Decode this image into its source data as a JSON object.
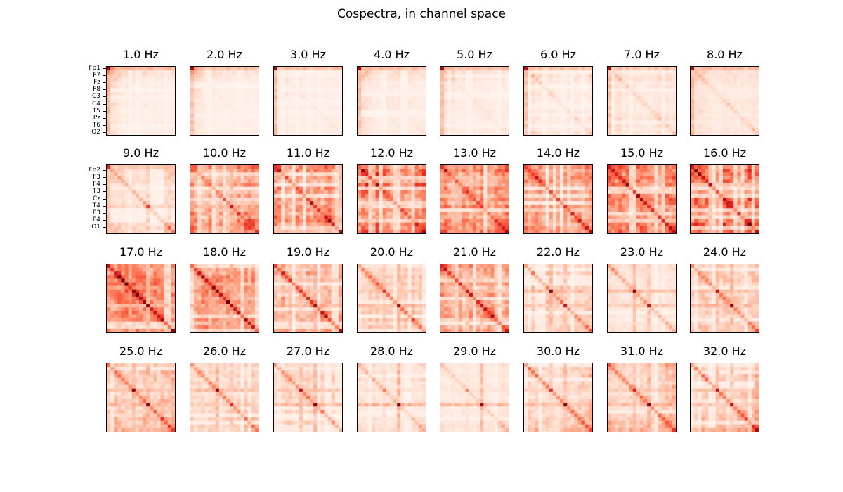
{
  "figure": {
    "title": "Cospectra, in channel space"
  },
  "chart_data": {
    "type": "heatmap",
    "title": "Cospectra, in channel space",
    "colormap": "Reds",
    "color_low": "#fff5f0",
    "color_high": "#67000d",
    "n_channels": 19,
    "panel_titles": [
      "1.0 Hz",
      "2.0 Hz",
      "3.0 Hz",
      "4.0 Hz",
      "5.0 Hz",
      "6.0 Hz",
      "7.0 Hz",
      "8.0 Hz",
      "9.0 Hz",
      "10.0 Hz",
      "11.0 Hz",
      "12.0 Hz",
      "13.0 Hz",
      "14.0 Hz",
      "15.0 Hz",
      "16.0 Hz",
      "17.0 Hz",
      "18.0 Hz",
      "19.0 Hz",
      "20.0 Hz",
      "21.0 Hz",
      "22.0 Hz",
      "23.0 Hz",
      "24.0 Hz",
      "25.0 Hz",
      "26.0 Hz",
      "27.0 Hz",
      "28.0 Hz",
      "29.0 Hz",
      "30.0 Hz",
      "31.0 Hz",
      "32.0 Hz"
    ],
    "yticks_row1": [
      "Fp1",
      "F7",
      "Fz",
      "F8",
      "C3",
      "C4",
      "T5",
      "Pz",
      "T6",
      "O2"
    ],
    "yticks_row2": [
      "Fp2",
      "F3",
      "F4",
      "T3",
      "Cz",
      "T4",
      "P3",
      "P4",
      "O1"
    ],
    "panels": [
      {
        "freq": 1,
        "base": 0.05,
        "frontal": 0.35,
        "peak": 0,
        "peak_value": 0.95,
        "diag": 0.02,
        "occipital": 0,
        "spots": []
      },
      {
        "freq": 2,
        "base": 0.05,
        "frontal": 0.32,
        "peak": 0,
        "peak_value": 0.9,
        "diag": 0.02,
        "occipital": 0,
        "spots": []
      },
      {
        "freq": 3,
        "base": 0.05,
        "frontal": 0.3,
        "peak": 0,
        "peak_value": 0.92,
        "diag": 0.03,
        "occipital": 0,
        "spots": []
      },
      {
        "freq": 4,
        "base": 0.06,
        "frontal": 0.3,
        "peak": 0,
        "peak_value": 0.92,
        "diag": 0.03,
        "occipital": 0,
        "spots": []
      },
      {
        "freq": 5,
        "base": 0.06,
        "frontal": 0.28,
        "peak": 0,
        "peak_value": 0.88,
        "diag": 0.04,
        "occipital": 0,
        "spots": []
      },
      {
        "freq": 6,
        "base": 0.1,
        "frontal": 0.25,
        "peak": 0,
        "peak_value": 0.85,
        "diag": 0.08,
        "occipital": 0,
        "spots": []
      },
      {
        "freq": 7,
        "base": 0.1,
        "frontal": 0.22,
        "peak": 0,
        "peak_value": 0.85,
        "diag": 0.1,
        "occipital": 0.05,
        "spots": []
      },
      {
        "freq": 8,
        "base": 0.08,
        "frontal": 0.2,
        "peak": 0,
        "peak_value": 0.9,
        "diag": 0.1,
        "occipital": 0.05,
        "spots": []
      },
      {
        "freq": 9,
        "base": 0.12,
        "frontal": 0.18,
        "peak": 0,
        "peak_value": 0.75,
        "diag": 0.18,
        "occipital": 0.15,
        "spots": [
          [
            11,
            11,
            0.65
          ],
          [
            17,
            17,
            0.55
          ]
        ]
      },
      {
        "freq": 10,
        "base": 0.3,
        "frontal": 0.15,
        "peak": 0,
        "peak_value": 0.55,
        "diag": 0.25,
        "occipital": 0.25,
        "spots": [
          [
            11,
            11,
            0.8
          ],
          [
            9,
            9,
            0.6
          ],
          [
            17,
            17,
            0.55
          ]
        ]
      },
      {
        "freq": 11,
        "base": 0.35,
        "frontal": 0.1,
        "peak": 0,
        "peak_value": 0.7,
        "diag": 0.3,
        "occipital": 0.3,
        "spots": [
          [
            10,
            10,
            0.9
          ],
          [
            18,
            18,
            0.9
          ],
          [
            15,
            15,
            0.6
          ]
        ]
      },
      {
        "freq": 12,
        "base": 0.45,
        "frontal": 0.05,
        "peak": 18,
        "peak_value": 0.9,
        "diag": 0.25,
        "occipital": 0.3,
        "spots": [
          [
            3,
            3,
            0.6
          ],
          [
            8,
            8,
            0.55
          ],
          [
            13,
            13,
            0.55
          ]
        ]
      },
      {
        "freq": 13,
        "base": 0.35,
        "frontal": 0.05,
        "peak": 18,
        "peak_value": 0.9,
        "diag": 0.25,
        "occipital": 0.25,
        "spots": [
          [
            10,
            10,
            0.6
          ],
          [
            17,
            17,
            0.65
          ]
        ]
      },
      {
        "freq": 14,
        "base": 0.3,
        "frontal": 0.05,
        "peak": 18,
        "peak_value": 0.9,
        "diag": 0.35,
        "occipital": 0.2,
        "spots": [
          [
            4,
            4,
            0.55
          ],
          [
            9,
            9,
            0.65
          ],
          [
            17,
            17,
            0.8
          ]
        ]
      },
      {
        "freq": 15,
        "base": 0.4,
        "frontal": 0.05,
        "peak": 18,
        "peak_value": 0.85,
        "diag": 0.35,
        "occipital": 0.2,
        "spots": [
          [
            4,
            4,
            0.8
          ],
          [
            7,
            7,
            0.65
          ],
          [
            10,
            10,
            0.75
          ],
          [
            15,
            15,
            0.7
          ]
        ]
      },
      {
        "freq": 16,
        "base": 0.45,
        "frontal": 0.05,
        "peak": 18,
        "peak_value": 0.85,
        "diag": 0.35,
        "occipital": 0.2,
        "spots": [
          [
            5,
            5,
            0.85
          ],
          [
            9,
            9,
            0.8
          ],
          [
            13,
            13,
            0.7
          ],
          [
            16,
            16,
            0.7
          ]
        ]
      },
      {
        "freq": 17,
        "base": 0.4,
        "frontal": 0.1,
        "peak": 11,
        "peak_value": 0.95,
        "diag": 0.45,
        "occipital": 0.15,
        "spots": [
          [
            3,
            3,
            0.75
          ],
          [
            7,
            7,
            0.7
          ],
          [
            15,
            15,
            0.75
          ],
          [
            18,
            18,
            0.85
          ]
        ]
      },
      {
        "freq": 18,
        "base": 0.35,
        "frontal": 0.08,
        "peak": 11,
        "peak_value": 0.9,
        "diag": 0.45,
        "occipital": 0.12,
        "spots": [
          [
            3,
            3,
            0.7
          ],
          [
            7,
            7,
            0.7
          ],
          [
            15,
            15,
            0.7
          ]
        ]
      },
      {
        "freq": 19,
        "base": 0.3,
        "frontal": 0.05,
        "peak": 11,
        "peak_value": 0.9,
        "diag": 0.4,
        "occipital": 0.1,
        "spots": [
          [
            4,
            4,
            0.7
          ],
          [
            7,
            7,
            0.7
          ]
        ]
      },
      {
        "freq": 20,
        "base": 0.2,
        "frontal": 0.05,
        "peak": 11,
        "peak_value": 0.9,
        "diag": 0.3,
        "occipital": 0.05,
        "spots": [
          [
            7,
            7,
            0.7
          ]
        ]
      },
      {
        "freq": 21,
        "base": 0.3,
        "frontal": 0.05,
        "peak": 11,
        "peak_value": 0.85,
        "diag": 0.4,
        "occipital": 0.05,
        "spots": [
          [
            7,
            7,
            0.8
          ],
          [
            4,
            4,
            0.6
          ]
        ]
      },
      {
        "freq": 22,
        "base": 0.18,
        "frontal": 0.05,
        "peak": 7,
        "peak_value": 0.95,
        "diag": 0.25,
        "occipital": 0.05,
        "spots": [
          [
            11,
            11,
            0.8
          ]
        ]
      },
      {
        "freq": 23,
        "base": 0.12,
        "frontal": 0.05,
        "peak": 7,
        "peak_value": 0.95,
        "diag": 0.2,
        "occipital": 0.05,
        "spots": [
          [
            11,
            11,
            0.8
          ]
        ]
      },
      {
        "freq": 24,
        "base": 0.18,
        "frontal": 0.05,
        "peak": 11,
        "peak_value": 0.95,
        "diag": 0.25,
        "occipital": 0.05,
        "spots": [
          [
            7,
            7,
            0.85
          ]
        ]
      },
      {
        "freq": 25,
        "base": 0.2,
        "frontal": 0.1,
        "peak": 11,
        "peak_value": 0.95,
        "diag": 0.3,
        "occipital": 0.15,
        "spots": [
          [
            7,
            7,
            0.95
          ]
        ]
      },
      {
        "freq": 26,
        "base": 0.15,
        "frontal": 0.05,
        "peak": 7,
        "peak_value": 0.95,
        "diag": 0.25,
        "occipital": 0.1,
        "spots": [
          [
            11,
            11,
            0.7
          ]
        ]
      },
      {
        "freq": 27,
        "base": 0.15,
        "frontal": 0.05,
        "peak": 11,
        "peak_value": 0.95,
        "diag": 0.25,
        "occipital": 0.1,
        "spots": [
          [
            7,
            7,
            0.85
          ]
        ]
      },
      {
        "freq": 28,
        "base": 0.1,
        "frontal": 0.03,
        "peak": 11,
        "peak_value": 0.95,
        "diag": 0.15,
        "occipital": 0.1,
        "spots": [
          [
            7,
            7,
            0.5
          ]
        ]
      },
      {
        "freq": 29,
        "base": 0.07,
        "frontal": 0.03,
        "peak": 11,
        "peak_value": 0.95,
        "diag": 0.12,
        "occipital": 0.1,
        "spots": [
          [
            7,
            7,
            0.45
          ]
        ]
      },
      {
        "freq": 30,
        "base": 0.15,
        "frontal": 0.05,
        "peak": 11,
        "peak_value": 0.95,
        "diag": 0.3,
        "occipital": 0.2,
        "spots": [
          [
            7,
            7,
            0.7
          ]
        ]
      },
      {
        "freq": 31,
        "base": 0.18,
        "frontal": 0.05,
        "peak": 11,
        "peak_value": 0.95,
        "diag": 0.3,
        "occipital": 0.25,
        "spots": [
          [
            7,
            7,
            0.75
          ]
        ]
      },
      {
        "freq": 32,
        "base": 0.15,
        "frontal": 0.05,
        "peak": 18,
        "peak_value": 0.9,
        "diag": 0.3,
        "occipital": 0.3,
        "spots": [
          [
            7,
            7,
            0.85
          ],
          [
            11,
            11,
            0.85
          ]
        ]
      }
    ]
  }
}
